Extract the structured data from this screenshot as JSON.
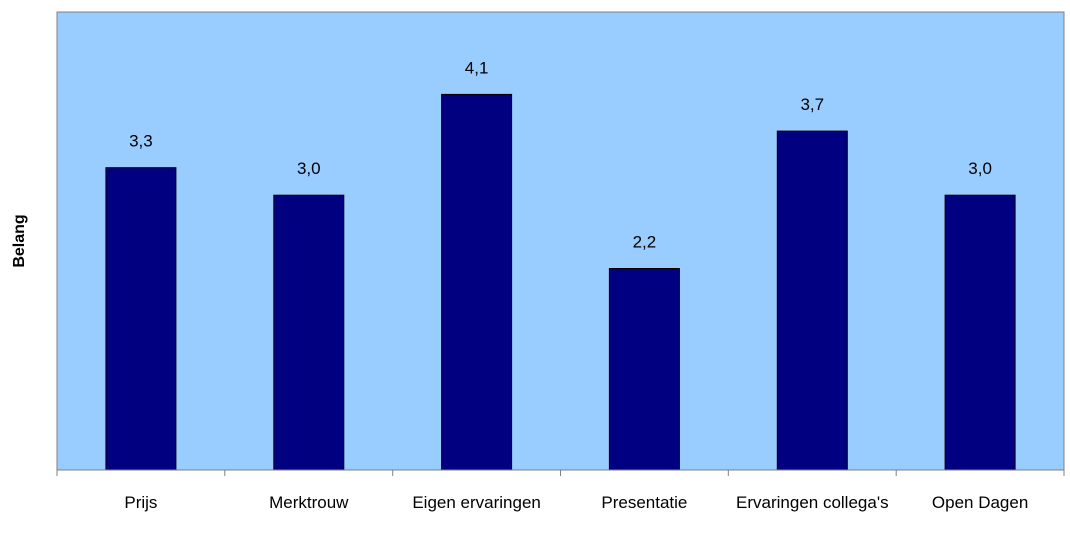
{
  "chart_data": {
    "type": "bar",
    "title": "",
    "xlabel": "",
    "ylabel": "Belang",
    "categories": [
      "Prijs",
      "Merktrouw",
      "Eigen ervaringen",
      "Presentatie",
      "Ervaringen collega's",
      "Open Dagen"
    ],
    "values": [
      3.3,
      3.0,
      4.1,
      2.2,
      3.7,
      3.0
    ],
    "data_labels": [
      "3,3",
      "3,0",
      "4,1",
      "2,2",
      "3,7",
      "3,0"
    ],
    "ylim": [
      0,
      5
    ],
    "grid": false,
    "legend": "none",
    "colors": {
      "plot_background": "#99CCFF",
      "bar_fill": "#000080",
      "bar_stroke": "#000000",
      "axis": "#808080"
    }
  }
}
